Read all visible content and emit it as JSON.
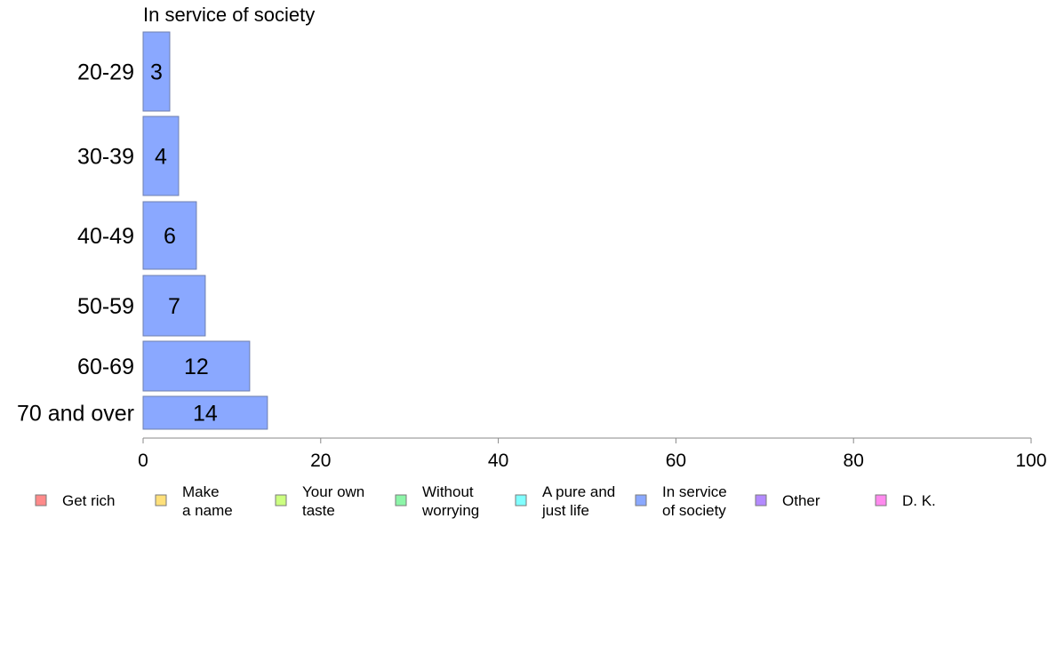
{
  "chart_data": {
    "type": "bar",
    "orientation": "horizontal",
    "title": "In service of society",
    "xlabel": "",
    "ylabel": "",
    "categories": [
      "20-29",
      "30-39",
      "40-49",
      "50-59",
      "60-69",
      "70 and over"
    ],
    "series": [
      {
        "name": "In service of society",
        "values": [
          3,
          4,
          6,
          7,
          12,
          14
        ],
        "color": "#8aa8ff"
      }
    ],
    "xlim": [
      0,
      100
    ],
    "xticks": [
      0,
      20,
      40,
      60,
      80,
      100
    ],
    "grid": false,
    "legend_position": "bottom",
    "legend": [
      {
        "label": [
          "Get rich"
        ],
        "color": "#ff8a8a"
      },
      {
        "label": [
          "Make",
          "a name"
        ],
        "color": "#ffe07a"
      },
      {
        "label": [
          "Your own",
          "taste"
        ],
        "color": "#ccff80"
      },
      {
        "label": [
          "Without",
          "worrying"
        ],
        "color": "#8cf5a8"
      },
      {
        "label": [
          "A pure and",
          "just life"
        ],
        "color": "#80ffff"
      },
      {
        "label": [
          "In service",
          "of society"
        ],
        "color": "#8aa8ff"
      },
      {
        "label": [
          "Other"
        ],
        "color": "#b38aff"
      },
      {
        "label": [
          "D. K."
        ],
        "color": "#ff8aee"
      }
    ]
  }
}
